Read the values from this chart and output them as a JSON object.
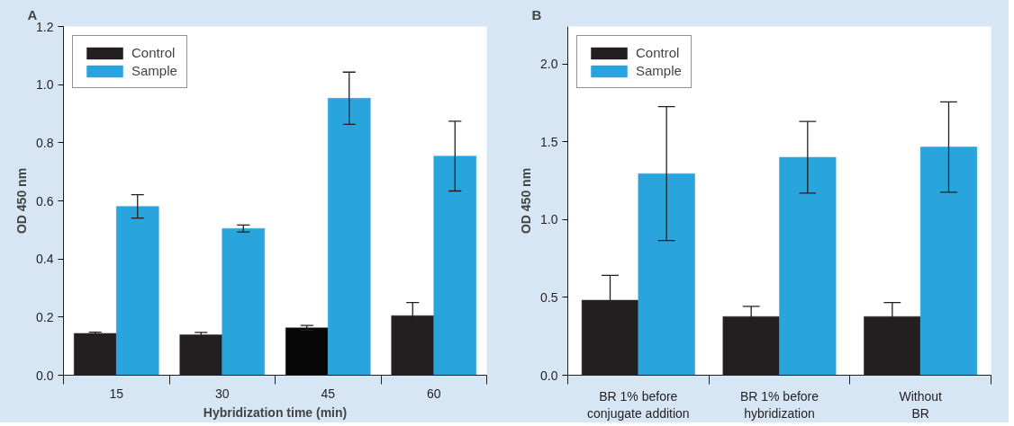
{
  "chart_data": [
    {
      "type": "bar",
      "annotations": [
        "A"
      ],
      "xlabel": "Hybridization time (min)",
      "ylabel": "OD 450 nm",
      "categories": [
        "15",
        "30",
        "45",
        "60"
      ],
      "series": [
        {
          "name": "Control",
          "color": "#231f20",
          "colors": [
            "#231f20",
            "#231f20",
            "#070707",
            "#231f20"
          ],
          "values": [
            0.144,
            0.139,
            0.163,
            0.205
          ],
          "errors": [
            0.004,
            0.008,
            0.008,
            0.045
          ]
        },
        {
          "name": "Sample",
          "color": "#29a4dc",
          "values": [
            0.581,
            0.505,
            0.953,
            0.754
          ],
          "errors": [
            0.04,
            0.012,
            0.09,
            0.12
          ]
        }
      ],
      "ylim": [
        0,
        1.2
      ],
      "yticks": [
        {
          "value": 0,
          "label": "0.0"
        },
        0.2,
        0.4,
        0.6,
        0.8,
        {
          "value": 1,
          "label": "1.0"
        },
        1.2
      ],
      "legend": "top left",
      "grid": false
    },
    {
      "type": "bar",
      "annotations": [
        "B"
      ],
      "ylabel": "OD 450 nm",
      "categories": [
        "BR 1% before\nconjugate addition",
        "BR 1% before\nhybridization",
        "Without\nBR"
      ],
      "series": [
        {
          "name": "Control",
          "color": "#231f20",
          "values": [
            0.482,
            0.377,
            0.377
          ],
          "errors": [
            0.16,
            0.065,
            0.09
          ]
        },
        {
          "name": "Sample",
          "color": "#29a4dc",
          "values": [
            1.295,
            1.4,
            1.466
          ],
          "errors": [
            0.43,
            0.23,
            0.29
          ]
        }
      ],
      "ylim": [
        0,
        2.24
      ],
      "yticks": [
        {
          "value": 0,
          "label": "0.0"
        },
        0.5,
        {
          "value": 1,
          "label": "1.0"
        },
        1.5,
        {
          "value": 2,
          "label": "2.0"
        }
      ],
      "legend": "top left",
      "grid": false
    }
  ]
}
